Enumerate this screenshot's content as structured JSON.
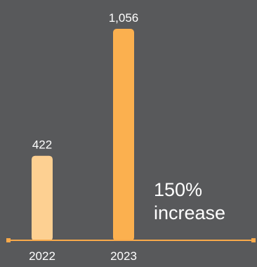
{
  "chart_data": {
    "type": "bar",
    "categories": [
      "2022",
      "2023"
    ],
    "values": [
      422,
      1056
    ],
    "value_labels": [
      "422",
      "1,056"
    ],
    "title": "",
    "xlabel": "",
    "ylabel": "",
    "ylim": [
      0,
      1056
    ],
    "grid": false,
    "colors": {
      "background": "#58595b",
      "bar_2022": "#fdd092",
      "bar_2023": "#fbb04f",
      "axis": "#f8a94a",
      "text": "#ffffff"
    },
    "annotation": {
      "lines": [
        "150%",
        "increase"
      ]
    }
  }
}
